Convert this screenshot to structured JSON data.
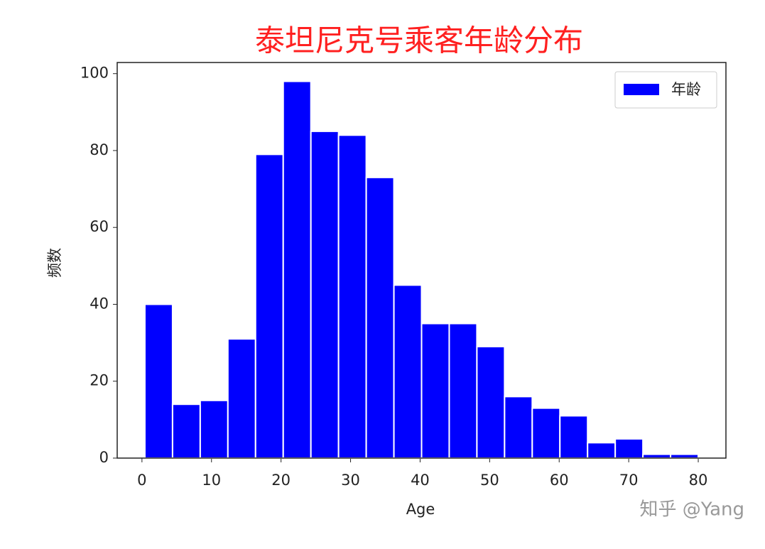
{
  "chart_data": {
    "type": "histogram",
    "title": "泰坦尼克号乘客年龄分布",
    "title_color": "#ff2020",
    "x_label": "Age",
    "y_label": "频数",
    "bins": [
      0.42,
      4.399,
      8.378,
      12.357,
      16.336,
      20.315,
      24.294,
      28.273,
      32.252,
      36.231,
      40.21,
      44.189,
      48.168,
      52.147,
      56.126,
      60.105,
      64.084,
      68.063,
      72.042,
      76.021,
      80.0
    ],
    "series": [
      {
        "name": "年龄",
        "color": "#0000ff",
        "values": [
          40,
          14,
          15,
          31,
          79,
          98,
          85,
          84,
          73,
          45,
          35,
          35,
          29,
          16,
          13,
          11,
          4,
          5,
          1,
          1
        ]
      }
    ],
    "xlim": [
      -3.56,
      83.98
    ],
    "xticks": [
      0,
      10,
      20,
      30,
      40,
      50,
      60,
      70,
      80
    ],
    "ylim": [
      0,
      102.9
    ],
    "yticks": [
      0,
      20,
      40,
      60,
      80,
      100
    ],
    "legend": "upper right",
    "watermark": "知乎 @Yang"
  }
}
